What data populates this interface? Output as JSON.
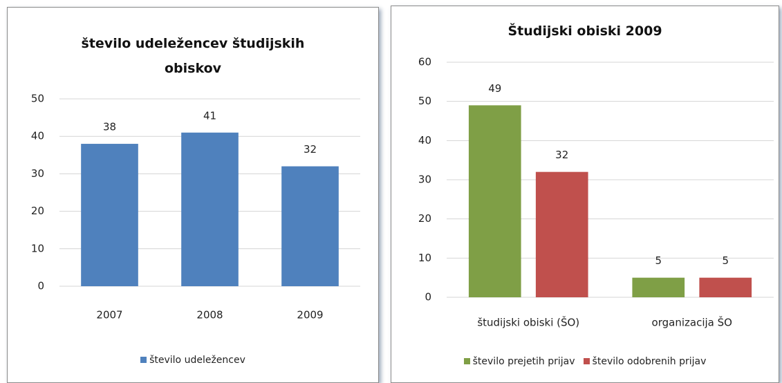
{
  "chart_data": [
    {
      "type": "bar",
      "title": "število udeležencev študijskih obiskov",
      "categories": [
        "2007",
        "2008",
        "2009"
      ],
      "series": [
        {
          "name": "število udeležencev",
          "color": "#4f81bd",
          "values": [
            38,
            41,
            32
          ]
        }
      ],
      "ylim": [
        0,
        50
      ],
      "yticks": [
        0,
        10,
        20,
        30,
        40,
        50
      ],
      "grid": true,
      "legend": "bottom"
    },
    {
      "type": "bar",
      "title": "Študijski obiski 2009",
      "categories": [
        "študijski obiski (ŠO)",
        "organizacija ŠO"
      ],
      "series": [
        {
          "name": "število prejetih prijav",
          "color": "#7f9f46",
          "values": [
            49,
            5
          ]
        },
        {
          "name": "število odobrenih prijav",
          "color": "#c0504d",
          "values": [
            32,
            5
          ]
        }
      ],
      "ylim": [
        0,
        60
      ],
      "yticks": [
        0,
        10,
        20,
        30,
        40,
        50,
        60
      ],
      "grid": true,
      "legend": "bottom"
    }
  ]
}
